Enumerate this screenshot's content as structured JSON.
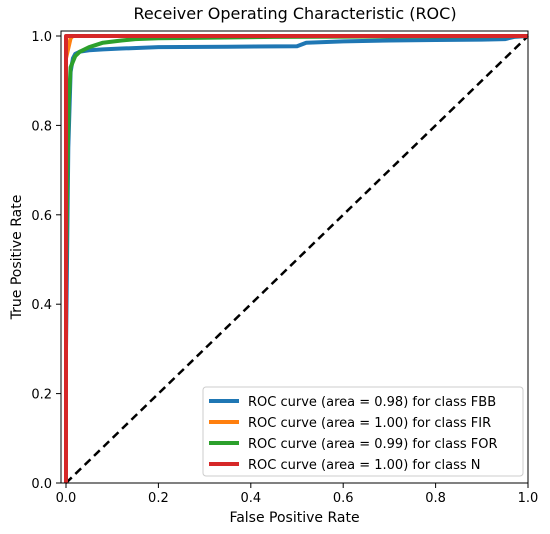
{
  "chart_data": {
    "type": "line",
    "title": "Receiver Operating Characteristic (ROC)",
    "xlabel": "False Positive Rate",
    "ylabel": "True Positive Rate",
    "xlim": [
      0.0,
      1.0
    ],
    "ylim": [
      0.0,
      1.0
    ],
    "xticks": [
      "0.0",
      "0.2",
      "0.4",
      "0.6",
      "0.8",
      "1.0"
    ],
    "yticks": [
      "0.0",
      "0.2",
      "0.4",
      "0.6",
      "0.8",
      "1.0"
    ],
    "grid": false,
    "legend_position": "bottom-right",
    "reference_line": {
      "style": "dashed",
      "color": "#000000",
      "x": [
        0,
        1
      ],
      "y": [
        0,
        1
      ]
    },
    "series": [
      {
        "name": "ROC curve (area = 0.98) for class FBB",
        "color": "#1f77b4",
        "x": [
          0,
          0.0,
          0.005,
          0.01,
          0.015,
          0.02,
          0.03,
          0.05,
          0.08,
          0.12,
          0.2,
          0.35,
          0.5,
          0.52,
          0.6,
          0.7,
          0.8,
          0.9,
          0.95,
          0.97,
          1.0
        ],
        "y": [
          0,
          0.3,
          0.75,
          0.92,
          0.95,
          0.96,
          0.965,
          0.968,
          0.97,
          0.972,
          0.975,
          0.976,
          0.977,
          0.985,
          0.988,
          0.99,
          0.991,
          0.992,
          0.993,
          0.998,
          1.0
        ]
      },
      {
        "name": "ROC curve (area = 1.00) for class FIR",
        "color": "#ff7f0e",
        "x": [
          0,
          0.0,
          0.01,
          0.015,
          1.0
        ],
        "y": [
          0,
          0.95,
          0.995,
          1.0,
          1.0
        ]
      },
      {
        "name": "ROC curve (area = 0.99) for class FOR",
        "color": "#2ca02c",
        "x": [
          0,
          0.0,
          0.003,
          0.006,
          0.01,
          0.02,
          0.03,
          0.05,
          0.08,
          0.12,
          0.15,
          0.2,
          0.3,
          0.45,
          1.0
        ],
        "y": [
          0,
          0.45,
          0.7,
          0.85,
          0.93,
          0.955,
          0.965,
          0.975,
          0.985,
          0.99,
          0.993,
          0.995,
          0.996,
          0.998,
          1.0
        ]
      },
      {
        "name": "ROC curve (area = 1.00) for class N",
        "color": "#d62728",
        "x": [
          0,
          0.0,
          0.005,
          0.01,
          1.0
        ],
        "y": [
          0,
          1.0,
          1.0,
          1.0,
          1.0
        ]
      }
    ]
  }
}
